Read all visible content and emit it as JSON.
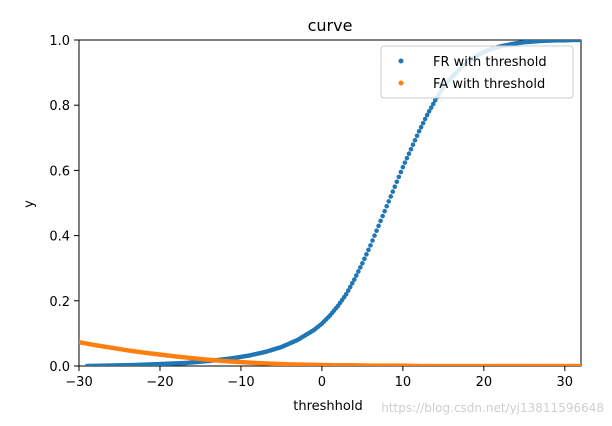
{
  "chart_data": {
    "type": "scatter",
    "title": "curve",
    "xlabel": "threshhold",
    "ylabel": "y",
    "xlim": [
      -30,
      32
    ],
    "ylim": [
      0,
      1.0
    ],
    "xticks": [
      -30,
      -20,
      -10,
      0,
      10,
      20,
      30
    ],
    "xtick_labels": [
      "−30",
      "−20",
      "−10",
      "0",
      "10",
      "20",
      "30"
    ],
    "yticks": [
      0.0,
      0.2,
      0.4,
      0.6,
      0.8,
      1.0
    ],
    "ytick_labels": [
      "0.0",
      "0.2",
      "0.4",
      "0.6",
      "0.8",
      "1.0"
    ],
    "grid": false,
    "legend_position": "top-right",
    "series": [
      {
        "name": "FR with threshold",
        "color": "#1f77b4",
        "x": [
          -29,
          -27,
          -25,
          -23,
          -21,
          -19,
          -17,
          -15,
          -13,
          -11,
          -9,
          -7,
          -5,
          -3,
          -1,
          0,
          1,
          2,
          3,
          4,
          5,
          6,
          7,
          8,
          9,
          10,
          11,
          12,
          13,
          14,
          15,
          16,
          17,
          18,
          19,
          20,
          21,
          22,
          23,
          24,
          25,
          26,
          27,
          28,
          29,
          30,
          31,
          32
        ],
        "y": [
          0.0,
          0.001,
          0.002,
          0.003,
          0.005,
          0.007,
          0.009,
          0.013,
          0.018,
          0.024,
          0.032,
          0.043,
          0.058,
          0.08,
          0.11,
          0.13,
          0.155,
          0.185,
          0.22,
          0.265,
          0.315,
          0.37,
          0.43,
          0.49,
          0.55,
          0.61,
          0.665,
          0.72,
          0.77,
          0.815,
          0.855,
          0.885,
          0.91,
          0.932,
          0.95,
          0.963,
          0.973,
          0.98,
          0.985,
          0.99,
          0.993,
          0.995,
          0.997,
          0.998,
          0.999,
          0.999,
          1.0,
          1.0
        ]
      },
      {
        "name": "FA with threshold",
        "color": "#ff7f0e",
        "x": [
          -30,
          -28,
          -26,
          -24,
          -22,
          -20,
          -18,
          -16,
          -14,
          -12,
          -10,
          -8,
          -6,
          -4,
          -2,
          0,
          2,
          4,
          6,
          8,
          10,
          12,
          14,
          16,
          18,
          20,
          22,
          24,
          26,
          28,
          30,
          32
        ],
        "y": [
          0.073,
          0.064,
          0.056,
          0.048,
          0.041,
          0.035,
          0.029,
          0.024,
          0.019,
          0.015,
          0.012,
          0.009,
          0.007,
          0.005,
          0.004,
          0.003,
          0.002,
          0.002,
          0.001,
          0.001,
          0.001,
          0.0,
          0.0,
          0.0,
          0.0,
          0.0,
          0.0,
          0.0,
          0.0,
          0.0,
          0.0,
          0.0
        ]
      }
    ]
  },
  "watermark": "https://blog.csdn.net/yj13811596648"
}
